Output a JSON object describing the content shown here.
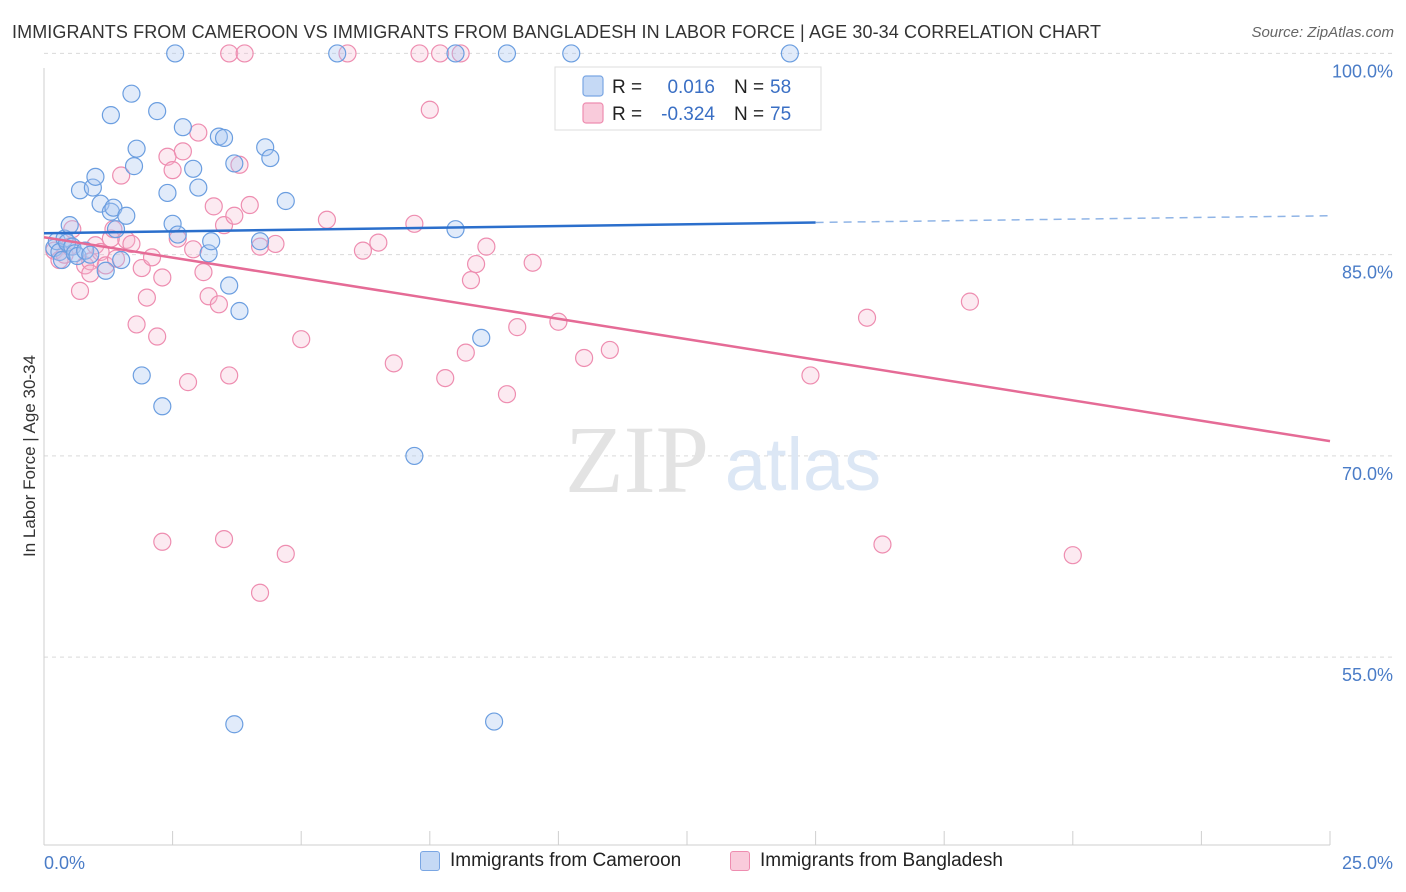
{
  "header": {
    "title": "IMMIGRANTS FROM CAMEROON VS IMMIGRANTS FROM BANGLADESH IN LABOR FORCE | AGE 30-34 CORRELATION CHART",
    "source": "Source: ZipAtlas.com"
  },
  "watermark": {
    "zip": "ZIP",
    "atlas": "atlas"
  },
  "stats": {
    "r_label": "R =",
    "n_label": "N =",
    "series": [
      {
        "r": "0.016",
        "n": "58"
      },
      {
        "r": "-0.324",
        "n": "75"
      }
    ]
  },
  "chart_data": {
    "type": "scatter",
    "xlabel": "",
    "ylabel": "In Labor Force | Age 30-34",
    "xlim": [
      0,
      25
    ],
    "ylim": [
      41,
      101
    ],
    "x_tick_labels": [
      "0.0%",
      "25.0%"
    ],
    "y_ticks": [
      {
        "value": 100,
        "label": "100.0%"
      },
      {
        "value": 85,
        "label": "85.0%"
      },
      {
        "value": 70,
        "label": "70.0%"
      },
      {
        "value": 55,
        "label": "55.0%"
      }
    ],
    "grid": true,
    "colors": {
      "cameroon": "#6b9ee0",
      "bangladesh": "#ee7aa0",
      "cameroon_line": "#2b6fcc",
      "bangladesh_line": "#e56b96"
    },
    "series": [
      {
        "name": "Immigrants from Cameroon",
        "trend": {
          "x0": 0,
          "y0": 86.6,
          "x1": 15,
          "y1": 87.4,
          "dashed_to_x": 25,
          "dashed_to_y": 87.9
        },
        "points": [
          [
            0.2,
            85.5
          ],
          [
            0.25,
            86.0
          ],
          [
            0.3,
            85.2
          ],
          [
            0.35,
            84.6
          ],
          [
            0.4,
            86.2
          ],
          [
            0.45,
            85.9
          ],
          [
            0.5,
            87.2
          ],
          [
            0.55,
            85.6
          ],
          [
            0.6,
            85.1
          ],
          [
            0.65,
            84.9
          ],
          [
            0.7,
            89.8
          ],
          [
            0.8,
            85.3
          ],
          [
            0.9,
            85.0
          ],
          [
            0.95,
            90.0
          ],
          [
            1.0,
            90.8
          ],
          [
            1.1,
            88.8
          ],
          [
            1.2,
            83.8
          ],
          [
            1.3,
            88.2
          ],
          [
            1.35,
            88.5
          ],
          [
            1.4,
            86.9
          ],
          [
            1.5,
            84.6
          ],
          [
            1.6,
            87.9
          ],
          [
            1.7,
            97.0
          ],
          [
            1.75,
            91.6
          ],
          [
            1.8,
            92.9
          ],
          [
            1.9,
            76.0
          ],
          [
            1.3,
            95.4
          ],
          [
            2.2,
            95.7
          ],
          [
            2.3,
            73.7
          ],
          [
            2.4,
            89.6
          ],
          [
            2.5,
            87.3
          ],
          [
            2.6,
            86.5
          ],
          [
            2.7,
            94.5
          ],
          [
            2.9,
            91.4
          ],
          [
            3.0,
            90.0
          ],
          [
            3.2,
            85.1
          ],
          [
            3.25,
            86.0
          ],
          [
            3.4,
            93.8
          ],
          [
            3.5,
            93.7
          ],
          [
            3.6,
            82.7
          ],
          [
            3.7,
            91.8
          ],
          [
            3.8,
            80.8
          ],
          [
            4.2,
            86.0
          ],
          [
            4.3,
            93.0
          ],
          [
            4.4,
            92.2
          ],
          [
            4.7,
            89.0
          ],
          [
            2.55,
            100.0
          ],
          [
            5.7,
            100.0
          ],
          [
            8.0,
            100.0
          ],
          [
            9.0,
            100.0
          ],
          [
            10.25,
            100.0
          ],
          [
            7.2,
            70.0
          ],
          [
            8.0,
            86.9
          ],
          [
            8.5,
            78.8
          ],
          [
            3.7,
            50.0
          ],
          [
            8.75,
            50.2
          ],
          [
            11.5,
            95.3
          ],
          [
            14.5,
            100.0
          ]
        ]
      },
      {
        "name": "Immigrants from Bangladesh",
        "trend": {
          "x0": 0,
          "y0": 86.3,
          "x1": 25,
          "y1": 71.1
        },
        "points": [
          [
            0.2,
            85.3
          ],
          [
            0.3,
            84.6
          ],
          [
            0.4,
            85.0
          ],
          [
            0.5,
            85.6
          ],
          [
            0.55,
            86.9
          ],
          [
            0.7,
            82.3
          ],
          [
            0.8,
            84.2
          ],
          [
            0.9,
            84.5
          ],
          [
            1.0,
            85.7
          ],
          [
            1.1,
            85.2
          ],
          [
            1.2,
            84.2
          ],
          [
            1.3,
            86.2
          ],
          [
            1.35,
            86.9
          ],
          [
            1.4,
            84.7
          ],
          [
            1.5,
            90.9
          ],
          [
            1.6,
            86.1
          ],
          [
            1.7,
            85.8
          ],
          [
            1.8,
            79.8
          ],
          [
            1.9,
            84.0
          ],
          [
            2.0,
            81.8
          ],
          [
            2.1,
            84.8
          ],
          [
            2.2,
            78.9
          ],
          [
            2.3,
            83.3
          ],
          [
            2.4,
            92.3
          ],
          [
            2.5,
            91.3
          ],
          [
            2.6,
            86.2
          ],
          [
            2.7,
            92.7
          ],
          [
            2.8,
            75.5
          ],
          [
            2.9,
            85.4
          ],
          [
            3.0,
            94.1
          ],
          [
            3.1,
            83.7
          ],
          [
            3.2,
            81.9
          ],
          [
            3.3,
            88.6
          ],
          [
            3.4,
            81.3
          ],
          [
            3.5,
            87.2
          ],
          [
            3.6,
            76.0
          ],
          [
            3.7,
            87.9
          ],
          [
            3.8,
            91.7
          ],
          [
            4.0,
            88.7
          ],
          [
            4.2,
            85.6
          ],
          [
            4.5,
            85.8
          ],
          [
            5.0,
            78.7
          ],
          [
            5.5,
            87.6
          ],
          [
            6.2,
            85.3
          ],
          [
            6.5,
            85.9
          ],
          [
            6.8,
            76.9
          ],
          [
            7.2,
            87.3
          ],
          [
            7.5,
            95.8
          ],
          [
            7.8,
            75.8
          ],
          [
            8.2,
            77.7
          ],
          [
            8.3,
            83.1
          ],
          [
            8.4,
            84.3
          ],
          [
            8.6,
            85.6
          ],
          [
            9.0,
            74.6
          ],
          [
            9.2,
            79.6
          ],
          [
            9.5,
            84.4
          ],
          [
            10.0,
            80.0
          ],
          [
            10.5,
            77.3
          ],
          [
            11.0,
            77.9
          ],
          [
            14.9,
            76.0
          ],
          [
            16.0,
            80.3
          ],
          [
            18.0,
            81.5
          ],
          [
            2.3,
            63.6
          ],
          [
            3.5,
            63.8
          ],
          [
            4.2,
            59.8
          ],
          [
            4.7,
            62.7
          ],
          [
            16.3,
            63.4
          ],
          [
            20.0,
            62.6
          ],
          [
            3.6,
            100.0
          ],
          [
            3.9,
            100.0
          ],
          [
            5.9,
            100.0
          ],
          [
            7.3,
            100.0
          ],
          [
            7.7,
            100.0
          ],
          [
            8.1,
            100.0
          ],
          [
            0.9,
            83.6
          ]
        ]
      }
    ]
  },
  "legend": {
    "items": [
      {
        "label": "Immigrants from Cameroon"
      },
      {
        "label": "Immigrants from Bangladesh"
      }
    ]
  }
}
